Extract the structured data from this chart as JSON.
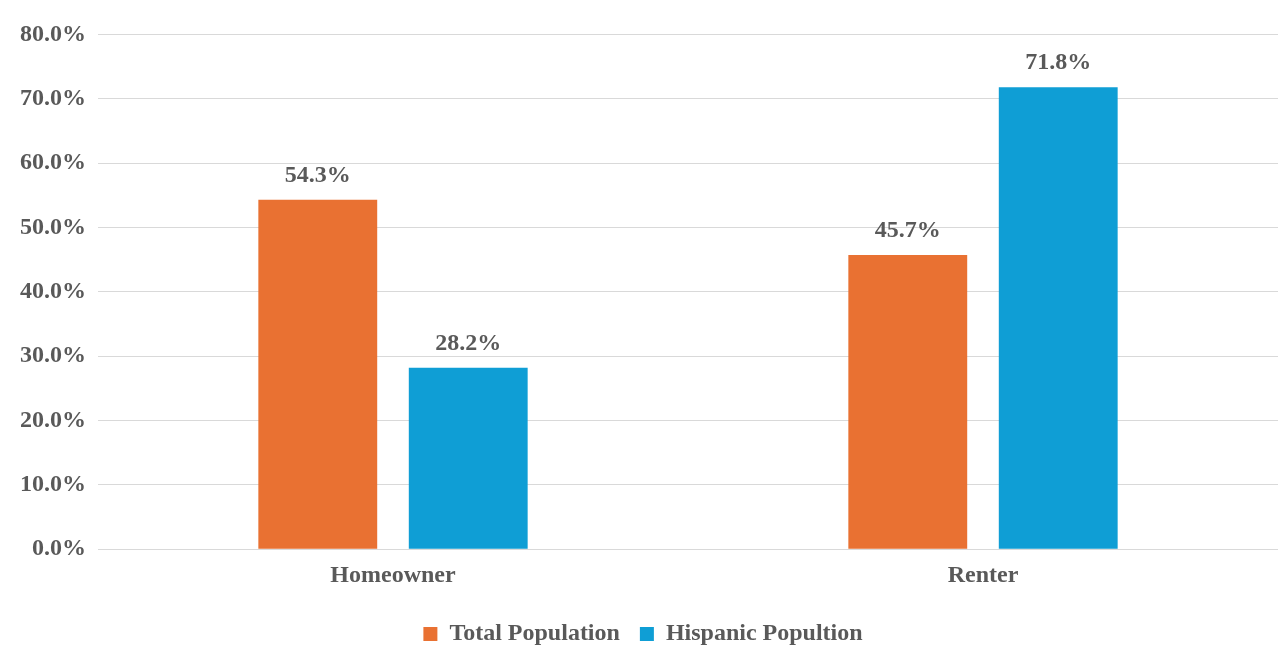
{
  "chart_data": {
    "type": "bar",
    "categories": [
      "Homeowner",
      "Renter"
    ],
    "series": [
      {
        "name": "Total Population",
        "color": "#e97132",
        "values": [
          54.3,
          45.7
        ],
        "value_labels": [
          "54.3%",
          "45.7%"
        ]
      },
      {
        "name": "Hispanic Popultion",
        "color": "#0f9ed5",
        "values": [
          28.2,
          71.8
        ],
        "value_labels": [
          "28.2%",
          "71.8%"
        ]
      }
    ],
    "ylim": [
      0,
      80
    ],
    "yticks": [
      {
        "value": 0,
        "label": "0.0%"
      },
      {
        "value": 10,
        "label": "10.0%"
      },
      {
        "value": 20,
        "label": "20.0%"
      },
      {
        "value": 30,
        "label": "30.0%"
      },
      {
        "value": 40,
        "label": "40.0%"
      },
      {
        "value": 50,
        "label": "50.0%"
      },
      {
        "value": 60,
        "label": "60.0%"
      },
      {
        "value": 70,
        "label": "70.0%"
      },
      {
        "value": 80,
        "label": "80.0%"
      }
    ],
    "grid": "y",
    "legend": "bottom"
  }
}
